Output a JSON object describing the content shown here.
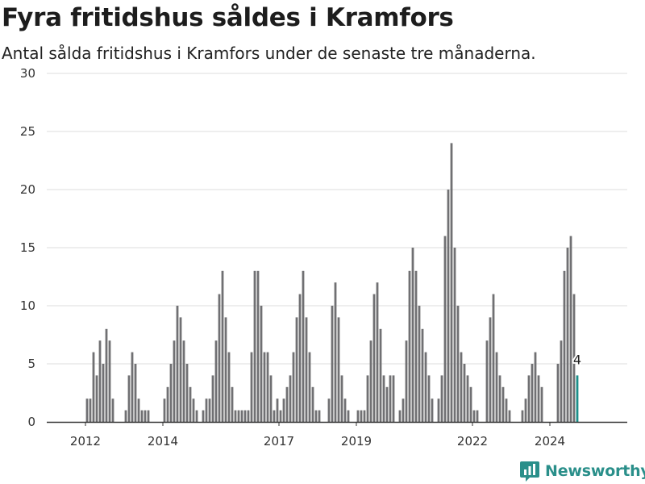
{
  "title": "Fyra fritidshus såldes i Kramfors",
  "subtitle": "Antal sålda fritidshus i Kramfors under de senaste tre månaderna.",
  "brand": "Newsworthy",
  "colors": {
    "bar": "#707073",
    "highlight": "#1b8f8a",
    "grid": "#dddddd",
    "brand": "#2a8f8a"
  },
  "chart_data": {
    "type": "bar",
    "ylim": [
      0,
      30
    ],
    "yticks": [
      "0",
      "5",
      "10",
      "15",
      "20",
      "25",
      "30"
    ],
    "xticks": [
      {
        "label": "2012",
        "year": 2012
      },
      {
        "label": "2014",
        "year": 2014
      },
      {
        "label": "2017",
        "year": 2017
      },
      {
        "label": "2019",
        "year": 2019
      },
      {
        "label": "2022",
        "year": 2022
      },
      {
        "label": "2024",
        "year": 2024
      }
    ],
    "x_start": "2011-01",
    "x_end": "2025-12",
    "grid": true,
    "values": [
      0,
      0,
      0,
      0,
      0,
      0,
      0,
      0,
      0,
      0,
      0,
      0,
      2,
      2,
      6,
      4,
      7,
      5,
      8,
      7,
      2,
      0,
      0,
      0,
      1,
      4,
      6,
      5,
      2,
      1,
      1,
      1,
      0,
      0,
      0,
      0,
      2,
      3,
      5,
      7,
      10,
      9,
      7,
      5,
      3,
      2,
      1,
      0,
      1,
      2,
      2,
      4,
      7,
      11,
      13,
      9,
      6,
      3,
      1,
      1,
      1,
      1,
      1,
      6,
      13,
      13,
      10,
      6,
      6,
      4,
      1,
      2,
      1,
      2,
      3,
      4,
      6,
      9,
      11,
      13,
      9,
      6,
      3,
      1,
      1,
      0,
      0,
      2,
      10,
      12,
      9,
      4,
      2,
      1,
      0,
      0,
      1,
      1,
      1,
      4,
      7,
      11,
      12,
      8,
      4,
      3,
      4,
      4,
      0,
      1,
      2,
      7,
      13,
      15,
      13,
      10,
      8,
      6,
      4,
      2,
      0,
      2,
      4,
      16,
      20,
      24,
      15,
      10,
      6,
      5,
      4,
      3,
      1,
      1,
      0,
      0,
      7,
      9,
      11,
      6,
      4,
      3,
      2,
      1,
      0,
      0,
      0,
      1,
      2,
      4,
      5,
      6,
      4,
      3,
      0,
      0,
      0,
      0,
      5,
      7,
      13,
      15,
      16,
      11,
      4
    ],
    "highlight_last": true,
    "annotation": "4"
  }
}
